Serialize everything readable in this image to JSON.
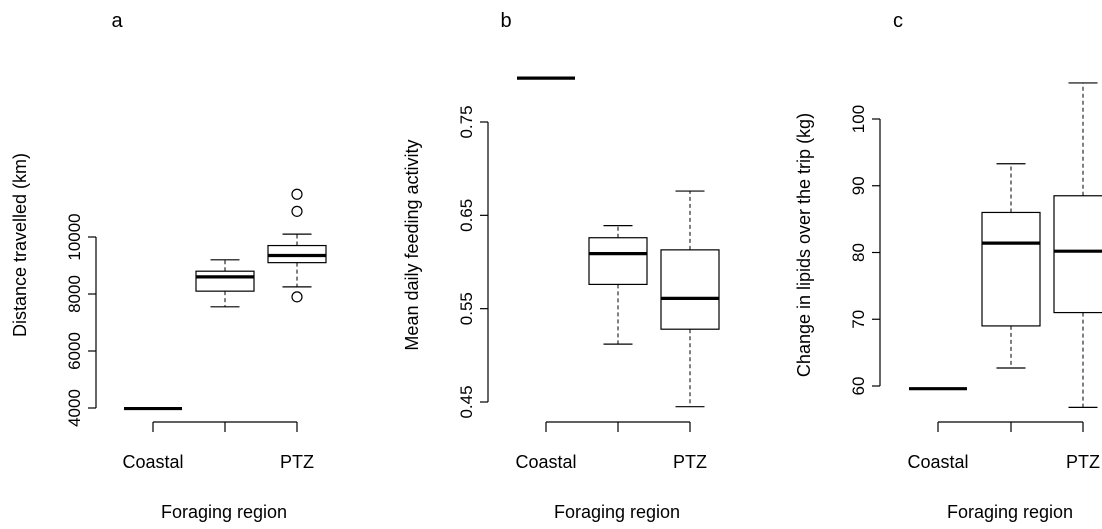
{
  "chart_data": [
    {
      "type": "box",
      "panel_label": "a",
      "xlabel": "Foraging region",
      "ylabel": "Distance travelled (km)",
      "categories": [
        "Coastal",
        "",
        "PTZ"
      ],
      "yticks": [
        4000,
        6000,
        8000,
        10000
      ],
      "ylim": [
        4000,
        11600
      ],
      "boxes": [
        {
          "category": "Coastal",
          "whisker_low": 3980,
          "q1": 3980,
          "median": 3980,
          "q3": 3980,
          "whisker_high": 3980,
          "outliers": []
        },
        {
          "category": "",
          "whisker_low": 7550,
          "q1": 8100,
          "median": 8600,
          "q3": 8800,
          "whisker_high": 9200,
          "outliers": []
        },
        {
          "category": "PTZ",
          "whisker_low": 8250,
          "q1": 9100,
          "median": 9350,
          "q3": 9700,
          "whisker_high": 10100,
          "outliers": [
            7900,
            10900,
            11500
          ]
        }
      ]
    },
    {
      "type": "box",
      "panel_label": "b",
      "xlabel": "Foraging region",
      "ylabel": "Mean daily feeding activity",
      "categories": [
        "Coastal",
        "",
        "PTZ"
      ],
      "yticks": [
        0.45,
        0.55,
        0.65,
        0.75
      ],
      "ylim": [
        0.45,
        0.8
      ],
      "boxes": [
        {
          "category": "Coastal",
          "whisker_low": 0.797,
          "q1": 0.797,
          "median": 0.797,
          "q3": 0.797,
          "whisker_high": 0.797,
          "outliers": []
        },
        {
          "category": "",
          "whisker_low": 0.512,
          "q1": 0.576,
          "median": 0.609,
          "q3": 0.626,
          "whisker_high": 0.639,
          "outliers": []
        },
        {
          "category": "PTZ",
          "whisker_low": 0.445,
          "q1": 0.528,
          "median": 0.561,
          "q3": 0.613,
          "whisker_high": 0.676,
          "outliers": []
        }
      ]
    },
    {
      "type": "box",
      "panel_label": "c",
      "xlabel": "Foraging region",
      "ylabel": "Change in lipids over the trip (kg)",
      "categories": [
        "Coastal",
        "",
        "PTZ"
      ],
      "yticks": [
        60,
        70,
        80,
        90,
        100
      ],
      "ylim": [
        58,
        106
      ],
      "boxes": [
        {
          "category": "Coastal",
          "whisker_low": 59.6,
          "q1": 59.6,
          "median": 59.6,
          "q3": 59.6,
          "whisker_high": 59.6,
          "outliers": []
        },
        {
          "category": "",
          "whisker_low": 62.7,
          "q1": 69.0,
          "median": 81.4,
          "q3": 86.0,
          "whisker_high": 93.3,
          "outliers": []
        },
        {
          "category": "PTZ",
          "whisker_low": 56.8,
          "q1": 71.0,
          "median": 80.2,
          "q3": 88.5,
          "whisker_high": 105.4,
          "outliers": []
        }
      ]
    }
  ]
}
